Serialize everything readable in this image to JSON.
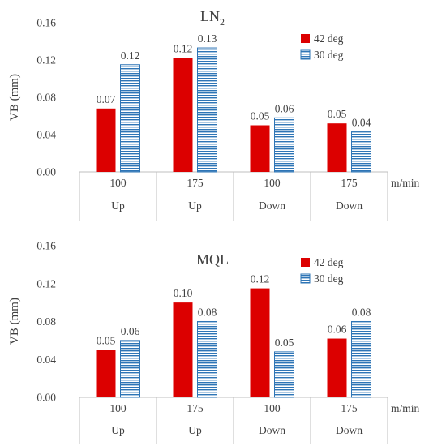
{
  "chart_data": [
    {
      "type": "bar",
      "title": "LN",
      "title_subscript": "2",
      "ylabel": "VB (mm)",
      "x_unit": "m/min",
      "ylim": [
        0,
        0.16
      ],
      "yticks": [
        "0.00",
        "0.04",
        "0.08",
        "0.12",
        "0.16"
      ],
      "categories": [
        "100",
        "175",
        "100",
        "175"
      ],
      "category_groups": [
        "Up",
        "Up",
        "Down",
        "Down"
      ],
      "grid": false,
      "legend_position": "top-right",
      "series": [
        {
          "name": "42 deg",
          "values": [
            0.068,
            0.122,
            0.05,
            0.052
          ],
          "labels": [
            "0.07",
            "0.12",
            "0.05",
            "0.05"
          ],
          "color": "#dc0000",
          "style": "solid"
        },
        {
          "name": "30 deg",
          "values": [
            0.115,
            0.133,
            0.058,
            0.043
          ],
          "labels": [
            "0.12",
            "0.13",
            "0.06",
            "0.04"
          ],
          "color": "#2e75b6",
          "style": "hatched"
        }
      ]
    },
    {
      "type": "bar",
      "title": "MQL",
      "title_subscript": "",
      "ylabel": "VB (mm)",
      "x_unit": "m/min",
      "ylim": [
        0,
        0.16
      ],
      "yticks": [
        "0.00",
        "0.04",
        "0.08",
        "0.12",
        "0.16"
      ],
      "categories": [
        "100",
        "175",
        "100",
        "175"
      ],
      "category_groups": [
        "Up",
        "Up",
        "Down",
        "Down"
      ],
      "grid": false,
      "legend_position": "top-right",
      "series": [
        {
          "name": "42 deg",
          "values": [
            0.05,
            0.1,
            0.115,
            0.062
          ],
          "labels": [
            "0.05",
            "0.10",
            "0.12",
            "0.06"
          ],
          "color": "#dc0000",
          "style": "solid"
        },
        {
          "name": "30 deg",
          "values": [
            0.06,
            0.08,
            0.048,
            0.08
          ],
          "labels": [
            "0.06",
            "0.08",
            "0.05",
            "0.08"
          ],
          "color": "#2e75b6",
          "style": "hatched"
        }
      ]
    }
  ]
}
